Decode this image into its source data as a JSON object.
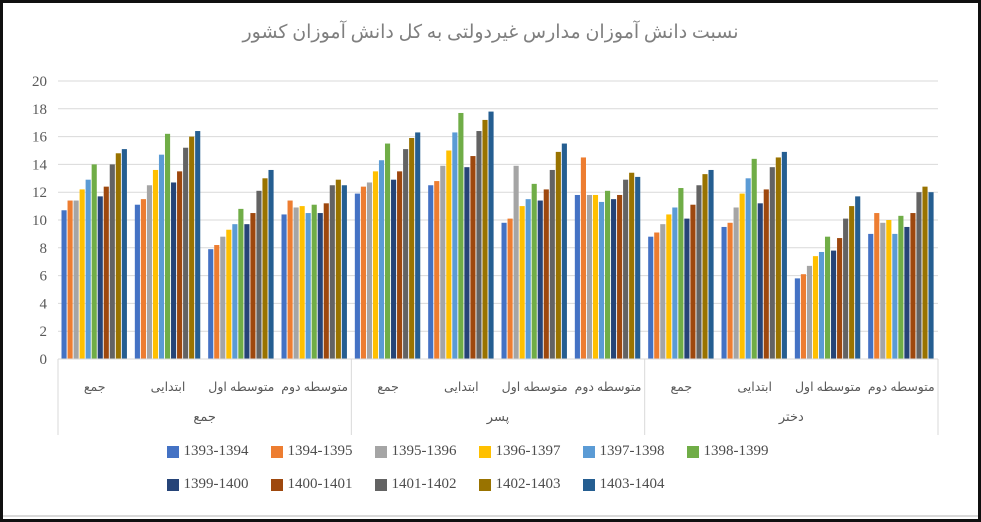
{
  "title": "نسبت دانش آموزان مدارس غیردولتی به کل دانش آموزان کشور",
  "chart_data": {
    "type": "bar",
    "title": "نسبت دانش آموزان مدارس غیردولتی به کل دانش آموزان کشور",
    "ylim": [
      0,
      20
    ],
    "ytick_step": 2,
    "grid": true,
    "legend_position": "bottom",
    "axis": {
      "group_labels": [
        "جمع",
        "پسر",
        "دختر"
      ],
      "category_labels": [
        "جمع",
        "ابتدایی",
        "متوسطه اول",
        "متوسطه دوم"
      ],
      "label_color": "#595959",
      "line_color": "#d9d9d9"
    },
    "series": [
      {
        "name": "1393-1394",
        "color": "#4472C4",
        "values": [
          10.7,
          11.1,
          7.9,
          10.4,
          11.9,
          12.5,
          9.8,
          11.8,
          8.8,
          9.5,
          5.8,
          9.0
        ]
      },
      {
        "name": "1394-1395",
        "color": "#ED7D31",
        "values": [
          11.4,
          11.5,
          8.2,
          11.4,
          12.4,
          12.8,
          10.1,
          14.5,
          9.1,
          9.8,
          6.1,
          10.5
        ]
      },
      {
        "name": "1395-1396",
        "color": "#A5A5A5",
        "values": [
          11.4,
          12.5,
          8.8,
          10.9,
          12.7,
          13.9,
          13.9,
          11.8,
          9.7,
          10.9,
          6.7,
          9.8
        ]
      },
      {
        "name": "1396-1397",
        "color": "#FFC000",
        "values": [
          12.2,
          13.6,
          9.3,
          11.0,
          13.5,
          15.0,
          11.0,
          11.8,
          10.4,
          11.9,
          7.4,
          10.0
        ]
      },
      {
        "name": "1397-1398",
        "color": "#5B9BD5",
        "values": [
          12.9,
          14.7,
          9.7,
          10.5,
          14.3,
          16.3,
          11.5,
          11.3,
          10.9,
          13.0,
          7.7,
          9.0
        ]
      },
      {
        "name": "1398-1399",
        "color": "#70AD47",
        "values": [
          14.0,
          16.2,
          10.8,
          11.1,
          15.5,
          17.7,
          12.6,
          12.1,
          12.3,
          14.4,
          8.8,
          10.3
        ]
      },
      {
        "name": "1399-1400",
        "color": "#264478",
        "values": [
          11.7,
          12.7,
          9.7,
          10.5,
          12.9,
          13.8,
          11.4,
          11.5,
          10.1,
          11.2,
          7.8,
          9.5
        ]
      },
      {
        "name": "1400-1401",
        "color": "#9E480E",
        "values": [
          12.4,
          13.5,
          10.5,
          11.2,
          13.5,
          14.6,
          12.2,
          11.8,
          11.1,
          12.2,
          8.7,
          10.5
        ]
      },
      {
        "name": "1401-1402",
        "color": "#636363",
        "values": [
          14.0,
          15.2,
          12.1,
          12.5,
          15.1,
          16.4,
          13.6,
          12.9,
          12.5,
          13.8,
          10.1,
          12.0
        ]
      },
      {
        "name": "1402-1403",
        "color": "#997300",
        "values": [
          14.8,
          16.0,
          13.0,
          12.9,
          15.9,
          17.2,
          14.9,
          13.4,
          13.3,
          14.5,
          11.0,
          12.4
        ]
      },
      {
        "name": "1403-1404",
        "color": "#255E91",
        "values": [
          15.1,
          16.4,
          13.6,
          12.5,
          16.3,
          17.8,
          15.5,
          13.1,
          13.6,
          14.9,
          11.7,
          12.0
        ]
      }
    ]
  }
}
